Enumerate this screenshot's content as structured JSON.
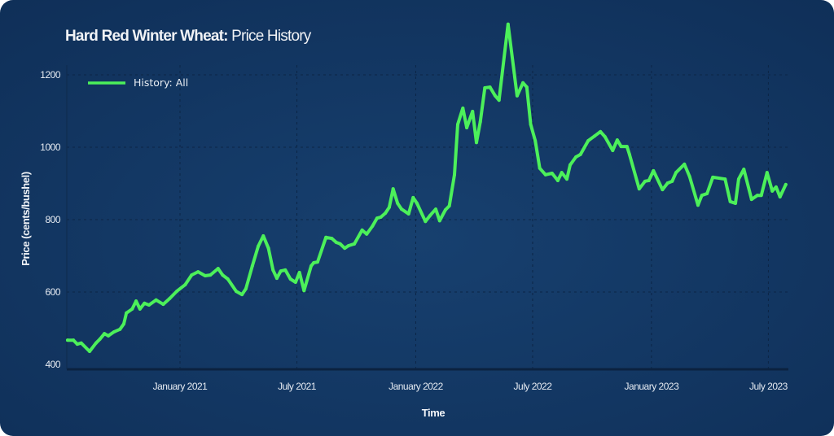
{
  "chart_data": {
    "type": "line",
    "title_bold": "Hard Red Winter Wheat:",
    "title_rest": " Price History",
    "xlabel": "Time",
    "ylabel": "Price (cents/bushel)",
    "ylim": [
      400,
      1200
    ],
    "yticks": [
      "400",
      "600",
      "800",
      "1000",
      "1200"
    ],
    "xticks": [
      {
        "date": "2021-01-01",
        "label": "January 2021"
      },
      {
        "date": "2021-07-01",
        "label": "July 2021"
      },
      {
        "date": "2022-01-01",
        "label": "January 2022"
      },
      {
        "date": "2022-07-01",
        "label": "July 2022"
      },
      {
        "date": "2023-01-01",
        "label": "January 2023"
      },
      {
        "date": "2023-07-01",
        "label": "July 2023"
      }
    ],
    "grid": true,
    "legend_position": "top-left",
    "colors": {
      "series": "#4cf05a",
      "background": "#123a66",
      "text": "#e6ebf2"
    },
    "series": [
      {
        "name": "History: All",
        "points": [
          [
            "2020-07-11",
            467
          ],
          [
            "2020-07-20",
            467
          ],
          [
            "2020-07-26",
            456
          ],
          [
            "2020-08-01",
            459
          ],
          [
            "2020-08-14",
            436
          ],
          [
            "2020-08-24",
            459
          ],
          [
            "2020-08-30",
            470
          ],
          [
            "2020-09-06",
            485
          ],
          [
            "2020-09-12",
            479
          ],
          [
            "2020-09-21",
            490
          ],
          [
            "2020-09-30",
            497
          ],
          [
            "2020-10-06",
            512
          ],
          [
            "2020-10-10",
            542
          ],
          [
            "2020-10-19",
            553
          ],
          [
            "2020-10-25",
            575
          ],
          [
            "2020-10-31",
            553
          ],
          [
            "2020-11-07",
            569
          ],
          [
            "2020-11-14",
            564
          ],
          [
            "2020-11-25",
            578
          ],
          [
            "2020-12-06",
            566
          ],
          [
            "2020-12-16",
            582
          ],
          [
            "2020-12-27",
            602
          ],
          [
            "2021-01-09",
            620
          ],
          [
            "2021-01-19",
            647
          ],
          [
            "2021-01-29",
            656
          ],
          [
            "2021-02-09",
            645
          ],
          [
            "2021-02-17",
            647
          ],
          [
            "2021-03-01",
            665
          ],
          [
            "2021-03-08",
            647
          ],
          [
            "2021-03-16",
            636
          ],
          [
            "2021-03-29",
            602
          ],
          [
            "2021-04-07",
            593
          ],
          [
            "2021-04-13",
            609
          ],
          [
            "2021-04-23",
            672
          ],
          [
            "2021-05-02",
            726
          ],
          [
            "2021-05-10",
            755
          ],
          [
            "2021-05-18",
            721
          ],
          [
            "2021-05-25",
            661
          ],
          [
            "2021-05-31",
            638
          ],
          [
            "2021-06-06",
            658
          ],
          [
            "2021-06-13",
            661
          ],
          [
            "2021-06-21",
            636
          ],
          [
            "2021-06-29",
            627
          ],
          [
            "2021-07-05",
            654
          ],
          [
            "2021-07-12",
            604
          ],
          [
            "2021-07-23",
            672
          ],
          [
            "2021-07-27",
            681
          ],
          [
            "2021-08-02",
            683
          ],
          [
            "2021-08-15",
            751
          ],
          [
            "2021-08-24",
            748
          ],
          [
            "2021-08-31",
            737
          ],
          [
            "2021-09-06",
            733
          ],
          [
            "2021-09-13",
            721
          ],
          [
            "2021-09-19",
            728
          ],
          [
            "2021-09-28",
            733
          ],
          [
            "2021-10-10",
            771
          ],
          [
            "2021-10-17",
            760
          ],
          [
            "2021-10-26",
            782
          ],
          [
            "2021-11-02",
            804
          ],
          [
            "2021-11-08",
            807
          ],
          [
            "2021-11-15",
            818
          ],
          [
            "2021-11-21",
            834
          ],
          [
            "2021-11-27",
            885
          ],
          [
            "2021-12-04",
            845
          ],
          [
            "2021-12-10",
            829
          ],
          [
            "2021-12-21",
            816
          ],
          [
            "2021-12-28",
            861
          ],
          [
            "2022-01-03",
            845
          ],
          [
            "2022-01-16",
            795
          ],
          [
            "2022-01-23",
            811
          ],
          [
            "2022-02-01",
            829
          ],
          [
            "2022-02-07",
            797
          ],
          [
            "2022-02-16",
            827
          ],
          [
            "2022-02-22",
            838
          ],
          [
            "2022-03-02",
            924
          ],
          [
            "2022-03-07",
            1063
          ],
          [
            "2022-03-15",
            1108
          ],
          [
            "2022-03-21",
            1054
          ],
          [
            "2022-03-30",
            1099
          ],
          [
            "2022-04-05",
            1013
          ],
          [
            "2022-04-11",
            1070
          ],
          [
            "2022-04-18",
            1164
          ],
          [
            "2022-04-26",
            1166
          ],
          [
            "2022-05-04",
            1142
          ],
          [
            "2022-05-10",
            1130
          ],
          [
            "2022-05-24",
            1340
          ],
          [
            "2022-06-07",
            1142
          ],
          [
            "2022-06-16",
            1178
          ],
          [
            "2022-06-22",
            1166
          ],
          [
            "2022-06-28",
            1063
          ],
          [
            "2022-07-05",
            1018
          ],
          [
            "2022-07-12",
            942
          ],
          [
            "2022-07-21",
            924
          ],
          [
            "2022-07-31",
            928
          ],
          [
            "2022-08-09",
            908
          ],
          [
            "2022-08-15",
            930
          ],
          [
            "2022-08-23",
            912
          ],
          [
            "2022-08-28",
            951
          ],
          [
            "2022-09-06",
            973
          ],
          [
            "2022-09-13",
            980
          ],
          [
            "2022-09-25",
            1018
          ],
          [
            "2022-10-05",
            1031
          ],
          [
            "2022-10-14",
            1043
          ],
          [
            "2022-10-21",
            1029
          ],
          [
            "2022-11-02",
            991
          ],
          [
            "2022-11-09",
            1020
          ],
          [
            "2022-11-15",
            1002
          ],
          [
            "2022-11-24",
            1002
          ],
          [
            "2022-11-28",
            980
          ],
          [
            "2022-12-13",
            885
          ],
          [
            "2022-12-22",
            906
          ],
          [
            "2022-12-28",
            908
          ],
          [
            "2023-01-04",
            935
          ],
          [
            "2023-01-18",
            883
          ],
          [
            "2023-01-26",
            901
          ],
          [
            "2023-02-02",
            906
          ],
          [
            "2023-02-08",
            930
          ],
          [
            "2023-02-21",
            953
          ],
          [
            "2023-03-01",
            919
          ],
          [
            "2023-03-14",
            840
          ],
          [
            "2023-03-20",
            867
          ],
          [
            "2023-03-28",
            872
          ],
          [
            "2023-04-06",
            917
          ],
          [
            "2023-04-25",
            912
          ],
          [
            "2023-05-03",
            850
          ],
          [
            "2023-05-11",
            845
          ],
          [
            "2023-05-16",
            912
          ],
          [
            "2023-05-24",
            939
          ],
          [
            "2023-06-05",
            856
          ],
          [
            "2023-06-14",
            867
          ],
          [
            "2023-06-20",
            867
          ],
          [
            "2023-06-29",
            930
          ],
          [
            "2023-07-07",
            879
          ],
          [
            "2023-07-13",
            890
          ],
          [
            "2023-07-19",
            863
          ],
          [
            "2023-07-28",
            897
          ]
        ]
      }
    ]
  }
}
